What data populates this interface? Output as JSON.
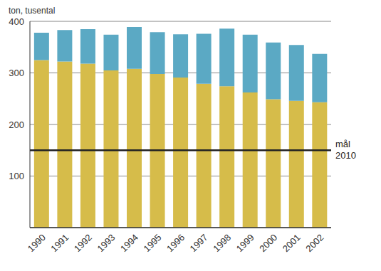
{
  "chart_data": {
    "type": "bar",
    "stacked": true,
    "ylabel": "ton, tusental",
    "categories": [
      "1990",
      "1991",
      "1992",
      "1993",
      "1994",
      "1995",
      "1996",
      "1997",
      "1998",
      "1999",
      "2000",
      "2001",
      "2002"
    ],
    "series": [
      {
        "color": "#d6bc4a",
        "values": [
          325,
          322,
          318,
          305,
          308,
          298,
          291,
          279,
          274,
          262,
          249,
          246,
          243
        ]
      },
      {
        "color": "#5ba9c4",
        "values": [
          53,
          61,
          67,
          69,
          81,
          81,
          84,
          97,
          112,
          112,
          110,
          108,
          94
        ]
      }
    ],
    "ylim": [
      0,
      400
    ],
    "yticks": [
      100,
      200,
      300,
      400
    ],
    "grid": true,
    "reference_lines": [
      {
        "value": 150,
        "label": "mål 2010"
      }
    ]
  }
}
